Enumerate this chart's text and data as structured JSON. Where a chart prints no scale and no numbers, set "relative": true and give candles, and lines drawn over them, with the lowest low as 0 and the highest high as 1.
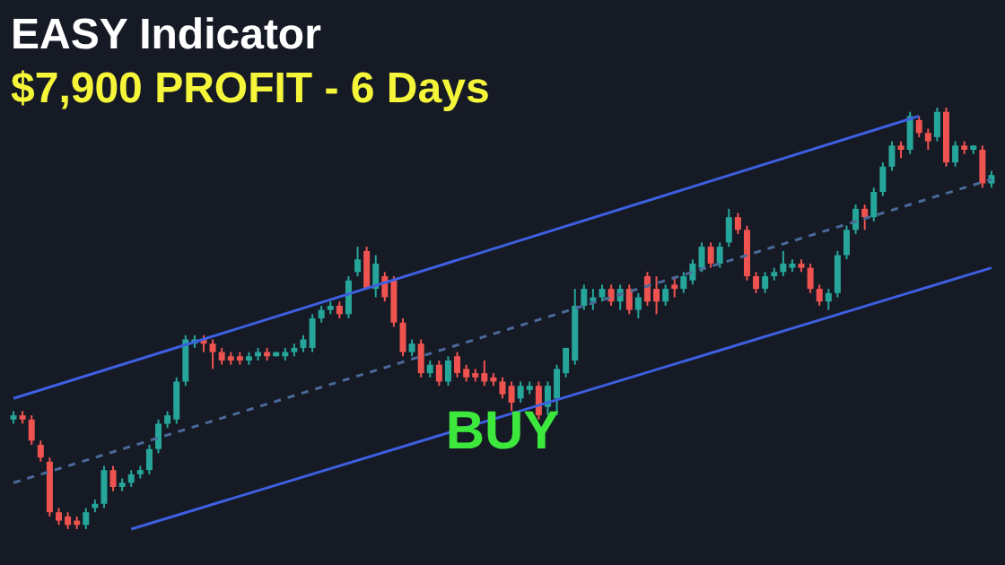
{
  "chart_data": {
    "type": "candlestick",
    "title": "EASY Indicator",
    "subtitle": "$7,900 PROFIT - 6 Days",
    "relative": true,
    "annotations": [
      "BUY"
    ],
    "categories": [
      null,
      null,
      null,
      null,
      null,
      null,
      null,
      null,
      null,
      null,
      null,
      null,
      null,
      null,
      null,
      null,
      null,
      null,
      null,
      null,
      null,
      null,
      null,
      null,
      null,
      null,
      null,
      null,
      null,
      null,
      null,
      null,
      null,
      null,
      null,
      null,
      null,
      null,
      null,
      null,
      null,
      null,
      null,
      null,
      null,
      null,
      null,
      null,
      null,
      null,
      null,
      null,
      null,
      null,
      null,
      null,
      null,
      null,
      null,
      null,
      null,
      null,
      null,
      null,
      null,
      null,
      null,
      null,
      null,
      null,
      null,
      null,
      null,
      null,
      null,
      null,
      null,
      null,
      null,
      null,
      null,
      null,
      null,
      null,
      null,
      null,
      null,
      null,
      null,
      null,
      null,
      null,
      null,
      null,
      null,
      null,
      null,
      null,
      null,
      null,
      null,
      null,
      null,
      null,
      null,
      null,
      null,
      null,
      null
    ],
    "ohlc": [
      [
        0.26,
        0.28,
        0.25,
        0.27
      ],
      [
        0.27,
        0.28,
        0.25,
        0.26
      ],
      [
        0.26,
        0.27,
        0.2,
        0.21
      ],
      [
        0.2,
        0.21,
        0.16,
        0.17
      ],
      [
        0.16,
        0.17,
        0.03,
        0.04
      ],
      [
        0.04,
        0.05,
        0.01,
        0.02
      ],
      [
        0.03,
        0.04,
        0.0,
        0.01
      ],
      [
        0.02,
        0.03,
        0.0,
        0.01
      ],
      [
        0.01,
        0.05,
        0.0,
        0.04
      ],
      [
        0.05,
        0.07,
        0.04,
        0.06
      ],
      [
        0.06,
        0.15,
        0.05,
        0.14
      ],
      [
        0.14,
        0.15,
        0.09,
        0.1
      ],
      [
        0.1,
        0.12,
        0.09,
        0.11
      ],
      [
        0.11,
        0.14,
        0.1,
        0.13
      ],
      [
        0.13,
        0.15,
        0.12,
        0.14
      ],
      [
        0.14,
        0.2,
        0.13,
        0.19
      ],
      [
        0.19,
        0.26,
        0.18,
        0.25
      ],
      [
        0.25,
        0.28,
        0.24,
        0.27
      ],
      [
        0.26,
        0.36,
        0.25,
        0.35
      ],
      [
        0.35,
        0.46,
        0.34,
        0.45
      ],
      [
        0.44,
        0.46,
        0.43,
        0.45
      ],
      [
        0.45,
        0.46,
        0.42,
        0.44
      ],
      [
        0.44,
        0.45,
        0.38,
        0.42
      ],
      [
        0.42,
        0.43,
        0.39,
        0.4
      ],
      [
        0.41,
        0.42,
        0.39,
        0.4
      ],
      [
        0.41,
        0.42,
        0.39,
        0.4
      ],
      [
        0.4,
        0.42,
        0.39,
        0.41
      ],
      [
        0.41,
        0.43,
        0.4,
        0.42
      ],
      [
        0.42,
        0.43,
        0.4,
        0.41
      ],
      [
        0.41,
        0.42,
        0.41,
        0.42
      ],
      [
        0.41,
        0.43,
        0.4,
        0.42
      ],
      [
        0.42,
        0.44,
        0.41,
        0.43
      ],
      [
        0.43,
        0.46,
        0.42,
        0.45
      ],
      [
        0.43,
        0.51,
        0.42,
        0.5
      ],
      [
        0.5,
        0.53,
        0.49,
        0.52
      ],
      [
        0.52,
        0.54,
        0.51,
        0.53
      ],
      [
        0.53,
        0.54,
        0.5,
        0.51
      ],
      [
        0.51,
        0.6,
        0.5,
        0.59
      ],
      [
        0.61,
        0.67,
        0.6,
        0.64
      ],
      [
        0.66,
        0.67,
        0.57,
        0.57
      ],
      [
        0.57,
        0.65,
        0.55,
        0.63
      ],
      [
        0.6,
        0.61,
        0.54,
        0.55
      ],
      [
        0.59,
        0.6,
        0.48,
        0.49
      ],
      [
        0.49,
        0.5,
        0.41,
        0.42
      ],
      [
        0.42,
        0.45,
        0.41,
        0.44
      ],
      [
        0.44,
        0.45,
        0.36,
        0.37
      ],
      [
        0.37,
        0.4,
        0.36,
        0.39
      ],
      [
        0.39,
        0.4,
        0.34,
        0.35
      ],
      [
        0.35,
        0.41,
        0.34,
        0.4
      ],
      [
        0.41,
        0.42,
        0.36,
        0.37
      ],
      [
        0.38,
        0.39,
        0.35,
        0.36
      ],
      [
        0.37,
        0.38,
        0.35,
        0.36
      ],
      [
        0.37,
        0.4,
        0.34,
        0.35
      ],
      [
        0.36,
        0.37,
        0.34,
        0.35
      ],
      [
        0.35,
        0.36,
        0.31,
        0.32
      ],
      [
        0.34,
        0.35,
        0.28,
        0.3
      ],
      [
        0.31,
        0.35,
        0.3,
        0.34
      ],
      [
        0.33,
        0.35,
        0.32,
        0.34
      ],
      [
        0.34,
        0.35,
        0.26,
        0.27
      ],
      [
        0.29,
        0.35,
        0.27,
        0.34
      ],
      [
        0.31,
        0.39,
        0.27,
        0.38
      ],
      [
        0.37,
        0.43,
        0.36,
        0.43
      ],
      [
        0.4,
        0.57,
        0.39,
        0.53
      ],
      [
        0.53,
        0.58,
        0.52,
        0.57
      ],
      [
        0.54,
        0.57,
        0.52,
        0.55
      ],
      [
        0.55,
        0.58,
        0.54,
        0.57
      ],
      [
        0.57,
        0.58,
        0.53,
        0.54
      ],
      [
        0.54,
        0.58,
        0.52,
        0.57
      ],
      [
        0.57,
        0.58,
        0.51,
        0.52
      ],
      [
        0.52,
        0.56,
        0.5,
        0.55
      ],
      [
        0.6,
        0.61,
        0.53,
        0.54
      ],
      [
        0.57,
        0.6,
        0.51,
        0.54
      ],
      [
        0.54,
        0.58,
        0.53,
        0.57
      ],
      [
        0.58,
        0.6,
        0.55,
        0.57
      ],
      [
        0.57,
        0.61,
        0.56,
        0.6
      ],
      [
        0.59,
        0.64,
        0.58,
        0.63
      ],
      [
        0.62,
        0.68,
        0.61,
        0.67
      ],
      [
        0.67,
        0.68,
        0.62,
        0.63
      ],
      [
        0.63,
        0.68,
        0.62,
        0.67
      ],
      [
        0.68,
        0.76,
        0.67,
        0.74
      ],
      [
        0.74,
        0.75,
        0.7,
        0.71
      ],
      [
        0.71,
        0.72,
        0.59,
        0.6
      ],
      [
        0.6,
        0.61,
        0.56,
        0.57
      ],
      [
        0.57,
        0.61,
        0.56,
        0.6
      ],
      [
        0.6,
        0.62,
        0.59,
        0.61
      ],
      [
        0.61,
        0.66,
        0.6,
        0.63
      ],
      [
        0.62,
        0.64,
        0.61,
        0.63
      ],
      [
        0.63,
        0.64,
        0.61,
        0.62
      ],
      [
        0.62,
        0.63,
        0.56,
        0.57
      ],
      [
        0.57,
        0.58,
        0.53,
        0.54
      ],
      [
        0.54,
        0.57,
        0.52,
        0.56
      ],
      [
        0.56,
        0.66,
        0.55,
        0.65
      ],
      [
        0.65,
        0.72,
        0.64,
        0.71
      ],
      [
        0.71,
        0.77,
        0.7,
        0.76
      ],
      [
        0.76,
        0.77,
        0.71,
        0.74
      ],
      [
        0.74,
        0.81,
        0.73,
        0.8
      ],
      [
        0.8,
        0.87,
        0.79,
        0.86
      ],
      [
        0.86,
        0.92,
        0.85,
        0.91
      ],
      [
        0.91,
        0.92,
        0.88,
        0.9
      ],
      [
        0.9,
        0.99,
        0.89,
        0.98
      ],
      [
        0.97,
        0.98,
        0.93,
        0.94
      ],
      [
        0.94,
        0.95,
        0.9,
        0.92
      ],
      [
        0.93,
        1.0,
        0.92,
        0.99
      ],
      [
        0.99,
        1.0,
        0.86,
        0.87
      ],
      [
        0.87,
        0.92,
        0.86,
        0.91
      ],
      [
        0.91,
        0.92,
        0.89,
        0.9
      ],
      [
        0.9,
        0.91,
        0.89,
        0.91
      ],
      [
        0.9,
        0.91,
        0.81,
        0.82
      ],
      [
        0.82,
        0.85,
        0.81,
        0.84
      ]
    ],
    "series": [
      {
        "type": "line",
        "color": "#3d5fe0",
        "values": [
          0.31,
          null,
          null,
          null,
          null,
          null,
          null,
          null,
          null,
          null,
          null,
          null,
          null,
          null,
          null,
          null,
          null,
          null,
          null,
          null,
          null,
          null,
          null,
          null,
          null,
          null,
          null,
          null,
          null,
          null,
          null,
          null,
          null,
          null,
          null,
          null,
          null,
          null,
          null,
          null,
          null,
          null,
          null,
          null,
          null,
          null,
          null,
          null,
          null,
          null,
          null,
          null,
          null,
          null,
          null,
          null,
          null,
          null,
          null,
          null,
          null,
          null,
          null,
          null,
          null,
          null,
          null,
          null,
          null,
          null,
          null,
          null,
          null,
          null,
          null,
          null,
          null,
          null,
          null,
          null,
          null,
          null,
          null,
          null,
          null,
          null,
          null,
          null,
          null,
          null,
          null,
          null,
          null,
          null,
          null,
          null,
          null,
          null,
          null,
          null,
          0.98,
          null,
          null,
          null,
          null,
          null,
          null,
          null,
          null
        ]
      },
      {
        "type": "line",
        "color": "#3d5fe0",
        "values": [
          null,
          null,
          null,
          null,
          null,
          null,
          null,
          null,
          null,
          null,
          null,
          null,
          null,
          0.0,
          null,
          null,
          null,
          null,
          null,
          null,
          null,
          null,
          null,
          null,
          null,
          null,
          null,
          null,
          null,
          null,
          null,
          null,
          null,
          null,
          null,
          null,
          null,
          null,
          null,
          null,
          null,
          null,
          null,
          null,
          null,
          null,
          null,
          null,
          null,
          null,
          null,
          null,
          null,
          null,
          null,
          null,
          null,
          null,
          null,
          null,
          null,
          null,
          null,
          null,
          null,
          null,
          null,
          null,
          null,
          null,
          null,
          null,
          null,
          null,
          null,
          null,
          null,
          null,
          null,
          null,
          null,
          null,
          null,
          null,
          null,
          null,
          null,
          null,
          null,
          null,
          null,
          null,
          null,
          null,
          null,
          null,
          null,
          null,
          null,
          null,
          null,
          null,
          null,
          null,
          null,
          null,
          null,
          null,
          0.62
        ]
      },
      {
        "type": "line",
        "color": "#4a6a9a",
        "line_style": "dashed",
        "values": [
          0.11,
          null,
          null,
          null,
          null,
          null,
          null,
          null,
          null,
          null,
          null,
          null,
          null,
          null,
          null,
          null,
          null,
          null,
          null,
          null,
          null,
          null,
          null,
          null,
          null,
          null,
          null,
          null,
          null,
          null,
          null,
          null,
          null,
          null,
          null,
          null,
          null,
          null,
          null,
          null,
          null,
          null,
          null,
          null,
          null,
          null,
          null,
          null,
          null,
          null,
          null,
          null,
          null,
          null,
          null,
          null,
          null,
          null,
          null,
          null,
          null,
          null,
          null,
          null,
          null,
          null,
          null,
          null,
          null,
          null,
          null,
          null,
          null,
          null,
          null,
          null,
          null,
          null,
          null,
          null,
          null,
          null,
          null,
          null,
          null,
          null,
          null,
          null,
          null,
          null,
          null,
          null,
          null,
          null,
          null,
          null,
          null,
          null,
          null,
          null,
          null,
          null,
          null,
          null,
          null,
          null,
          null,
          null,
          0.83
        ]
      }
    ]
  }
}
